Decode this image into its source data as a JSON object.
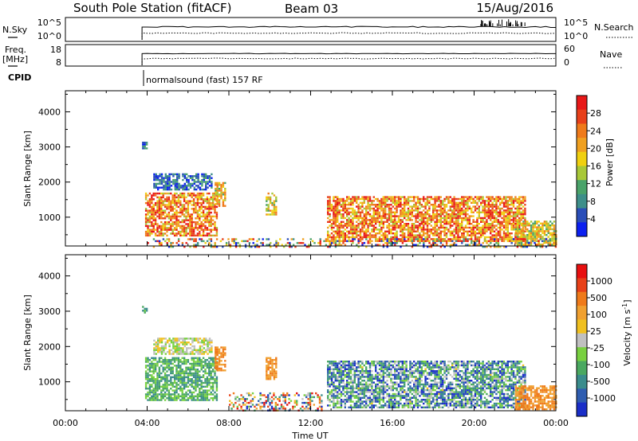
{
  "header": {
    "title": "South Pole Station (fitACF)",
    "beam": "Beam 03",
    "date": "15/Aug/2016"
  },
  "top_panels": {
    "nsky": {
      "label": "N.Sky",
      "ticks": [
        "10^5",
        "10^0"
      ]
    },
    "nsearch": {
      "label": "N.Search",
      "ticks": [
        "10^5",
        "10^0"
      ]
    },
    "freq": {
      "label_line1": "Freq.",
      "label_line2": "[MHz]",
      "ticks": [
        "18",
        "8"
      ]
    },
    "nave": {
      "label": "Nave",
      "ticks": [
        "60",
        "0"
      ]
    },
    "cpid": {
      "label": "CPID",
      "program": "normalsound (fast) 157 RF"
    }
  },
  "chart_data": [
    {
      "type": "heatmap",
      "panel": "power",
      "xlabel": "",
      "ylabel": "Slant Range [km]",
      "x_ticks": [
        "00:00",
        "04:00",
        "08:00",
        "12:00",
        "16:00",
        "20:00",
        "00:00"
      ],
      "y_ticks": [
        "1000",
        "2000",
        "3000",
        "4000"
      ],
      "xlim_hours": [
        0,
        24
      ],
      "ylim_km": [
        180,
        4600
      ],
      "colorbar": {
        "label": "Power [dB]",
        "range": [
          0,
          32
        ],
        "ticks": [
          "4",
          "8",
          "12",
          "16",
          "20",
          "24",
          "28"
        ],
        "tick_values": [
          4,
          8,
          12,
          16,
          20,
          24,
          28
        ],
        "colors": [
          "#0b20f0",
          "#2a4eb8",
          "#3e8f8a",
          "#4aa36a",
          "#a8c838",
          "#f0d010",
          "#f0a020",
          "#ef7a1a",
          "#e8401a",
          "#e81818"
        ]
      },
      "regions": [
        {
          "t0": 3.9,
          "t1": 7.4,
          "r0": 500,
          "r1": 1700,
          "level": "high"
        },
        {
          "t0": 4.3,
          "t1": 7.2,
          "r0": 1800,
          "r1": 2250,
          "level": "low"
        },
        {
          "t0": 7.3,
          "t1": 7.8,
          "r0": 1300,
          "r1": 2000,
          "level": "mid"
        },
        {
          "t0": 3.75,
          "t1": 3.95,
          "r0": 2950,
          "r1": 3150,
          "level": "low"
        },
        {
          "t0": 9.8,
          "t1": 10.3,
          "r0": 1100,
          "r1": 1700,
          "level": "mid"
        },
        {
          "t0": 12.8,
          "t1": 22.5,
          "r0": 300,
          "r1": 1600,
          "level": "high"
        },
        {
          "t0": 22.0,
          "t1": 24.0,
          "r0": 200,
          "r1": 900,
          "level": "mid"
        },
        {
          "t0": 4.0,
          "t1": 24.0,
          "r0": 180,
          "r1": 400,
          "level": "mixed"
        }
      ]
    },
    {
      "type": "heatmap",
      "panel": "velocity",
      "xlabel": "Time UT",
      "ylabel": "Slant Range [km]",
      "x_ticks": [
        "00:00",
        "04:00",
        "08:00",
        "12:00",
        "16:00",
        "20:00",
        "00:00"
      ],
      "y_ticks": [
        "1000",
        "2000",
        "3000",
        "4000"
      ],
      "xlim_hours": [
        0,
        24
      ],
      "ylim_km": [
        180,
        4600
      ],
      "colorbar": {
        "label": "Velocity [m s-1]",
        "label_parts": {
          "main": "Velocity  [m s",
          "sup": "-1",
          "end": "]"
        },
        "ticks": [
          "1000",
          "500",
          "100",
          "25",
          "-25",
          "-100",
          "-500",
          "-1000"
        ],
        "colors": [
          "#1a2ec8",
          "#2f5db0",
          "#3a8c8c",
          "#4aa860",
          "#78d040",
          "#c0c0c0",
          "#f0c020",
          "#f0a030",
          "#ef7a1a",
          "#e84018",
          "#e81010"
        ]
      },
      "regions": [
        {
          "t0": 3.9,
          "t1": 7.4,
          "r0": 500,
          "r1": 1700,
          "level": "green"
        },
        {
          "t0": 4.3,
          "t1": 7.2,
          "r0": 1800,
          "r1": 2250,
          "level": "grey"
        },
        {
          "t0": 7.3,
          "t1": 7.8,
          "r0": 1300,
          "r1": 2000,
          "level": "orange"
        },
        {
          "t0": 3.75,
          "t1": 3.95,
          "r0": 2950,
          "r1": 3150,
          "level": "green"
        },
        {
          "t0": 9.8,
          "t1": 10.3,
          "r0": 1100,
          "r1": 1700,
          "level": "orange"
        },
        {
          "t0": 12.8,
          "t1": 22.5,
          "r0": 300,
          "r1": 1600,
          "level": "blue"
        },
        {
          "t0": 22.0,
          "t1": 24.0,
          "r0": 200,
          "r1": 900,
          "level": "orange"
        },
        {
          "t0": 8.0,
          "t1": 12.5,
          "r0": 180,
          "r1": 700,
          "level": "mixed"
        }
      ]
    }
  ]
}
